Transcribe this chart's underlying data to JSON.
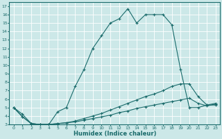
{
  "xlabel": "Humidex (Indice chaleur)",
  "bg_color": "#cce8e8",
  "grid_color": "#ffffff",
  "line_color": "#1a6b6b",
  "xlim": [
    -0.5,
    23.5
  ],
  "ylim": [
    3,
    17.5
  ],
  "xticks": [
    0,
    1,
    2,
    3,
    4,
    5,
    6,
    7,
    8,
    9,
    10,
    11,
    12,
    13,
    14,
    15,
    16,
    17,
    18,
    19,
    20,
    21,
    22,
    23
  ],
  "yticks": [
    3,
    4,
    5,
    6,
    7,
    8,
    9,
    10,
    11,
    12,
    13,
    14,
    15,
    16,
    17
  ],
  "line1_x": [
    0,
    1,
    2,
    3,
    4,
    5,
    6,
    7,
    8,
    9,
    10,
    11,
    12,
    13,
    14,
    15,
    16,
    17,
    18,
    19,
    20,
    21,
    22,
    23
  ],
  "line1_y": [
    5.0,
    4.2,
    3.1,
    3.0,
    3.0,
    4.5,
    5.0,
    7.5,
    9.5,
    12.0,
    13.5,
    15.0,
    15.5,
    16.7,
    15.0,
    16.0,
    16.0,
    16.0,
    14.8,
    9.5,
    5.0,
    5.0,
    5.3,
    5.3
  ],
  "line2_x": [
    0,
    1,
    2,
    3,
    4,
    5,
    6,
    7,
    8,
    9,
    10,
    11,
    12,
    13,
    14,
    15,
    16,
    17,
    18,
    19,
    20,
    21,
    22,
    23
  ],
  "line2_y": [
    5.0,
    3.9,
    3.1,
    3.0,
    3.0,
    3.1,
    3.2,
    3.4,
    3.7,
    4.0,
    4.3,
    4.7,
    5.1,
    5.5,
    5.9,
    6.3,
    6.6,
    7.0,
    7.5,
    7.8,
    7.8,
    6.3,
    5.3,
    5.5
  ],
  "line3_x": [
    0,
    1,
    2,
    3,
    4,
    5,
    6,
    7,
    8,
    9,
    10,
    11,
    12,
    13,
    14,
    15,
    16,
    17,
    18,
    19,
    20,
    21,
    22,
    23
  ],
  "line3_y": [
    5.0,
    3.9,
    3.1,
    3.0,
    3.0,
    3.1,
    3.2,
    3.3,
    3.5,
    3.7,
    3.9,
    4.1,
    4.4,
    4.6,
    4.9,
    5.1,
    5.3,
    5.5,
    5.7,
    5.9,
    6.1,
    5.5,
    5.2,
    5.4
  ]
}
